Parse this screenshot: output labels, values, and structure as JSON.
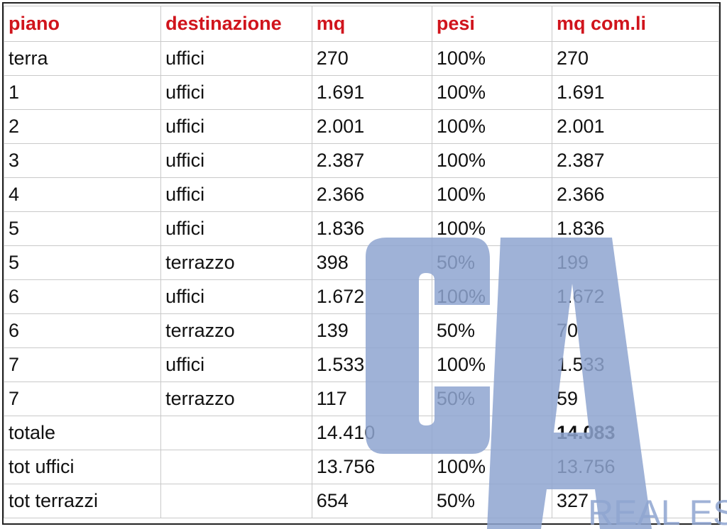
{
  "table": {
    "headers": [
      "piano",
      "destinazione",
      "mq",
      "pesi",
      "mq com.li"
    ],
    "rows": [
      [
        "terra",
        "uffici",
        "270",
        "100%",
        "270"
      ],
      [
        "1",
        "uffici",
        "1.691",
        "100%",
        "1.691"
      ],
      [
        "2",
        "uffici",
        "2.001",
        "100%",
        "2.001"
      ],
      [
        "3",
        "uffici",
        "2.387",
        "100%",
        "2.387"
      ],
      [
        "4",
        "uffici",
        "2.366",
        "100%",
        "2.366"
      ],
      [
        "5",
        "uffici",
        "1.836",
        "100%",
        "1.836"
      ],
      [
        "5",
        "terrazzo",
        "398",
        "50%",
        "199"
      ],
      [
        "6",
        "uffici",
        "1.672",
        "100%",
        "1.672"
      ],
      [
        "6",
        "terrazzo",
        "139",
        "50%",
        "70"
      ],
      [
        "7",
        "uffici",
        "1.533",
        "100%",
        "1.533"
      ],
      [
        "7",
        "terrazzo",
        "117",
        "50%",
        "59"
      ],
      [
        "totale",
        "",
        "14.410",
        "",
        "14.083"
      ],
      [
        "tot uffici",
        "",
        "13.756",
        "100%",
        "13.756"
      ],
      [
        "tot terrazzi",
        "",
        "654",
        "50%",
        "327"
      ]
    ]
  },
  "colors": {
    "header_text": "#d0141c",
    "watermark": "#8ea5d0"
  },
  "watermark": {
    "logo": "CA",
    "text": "REAL ES"
  }
}
